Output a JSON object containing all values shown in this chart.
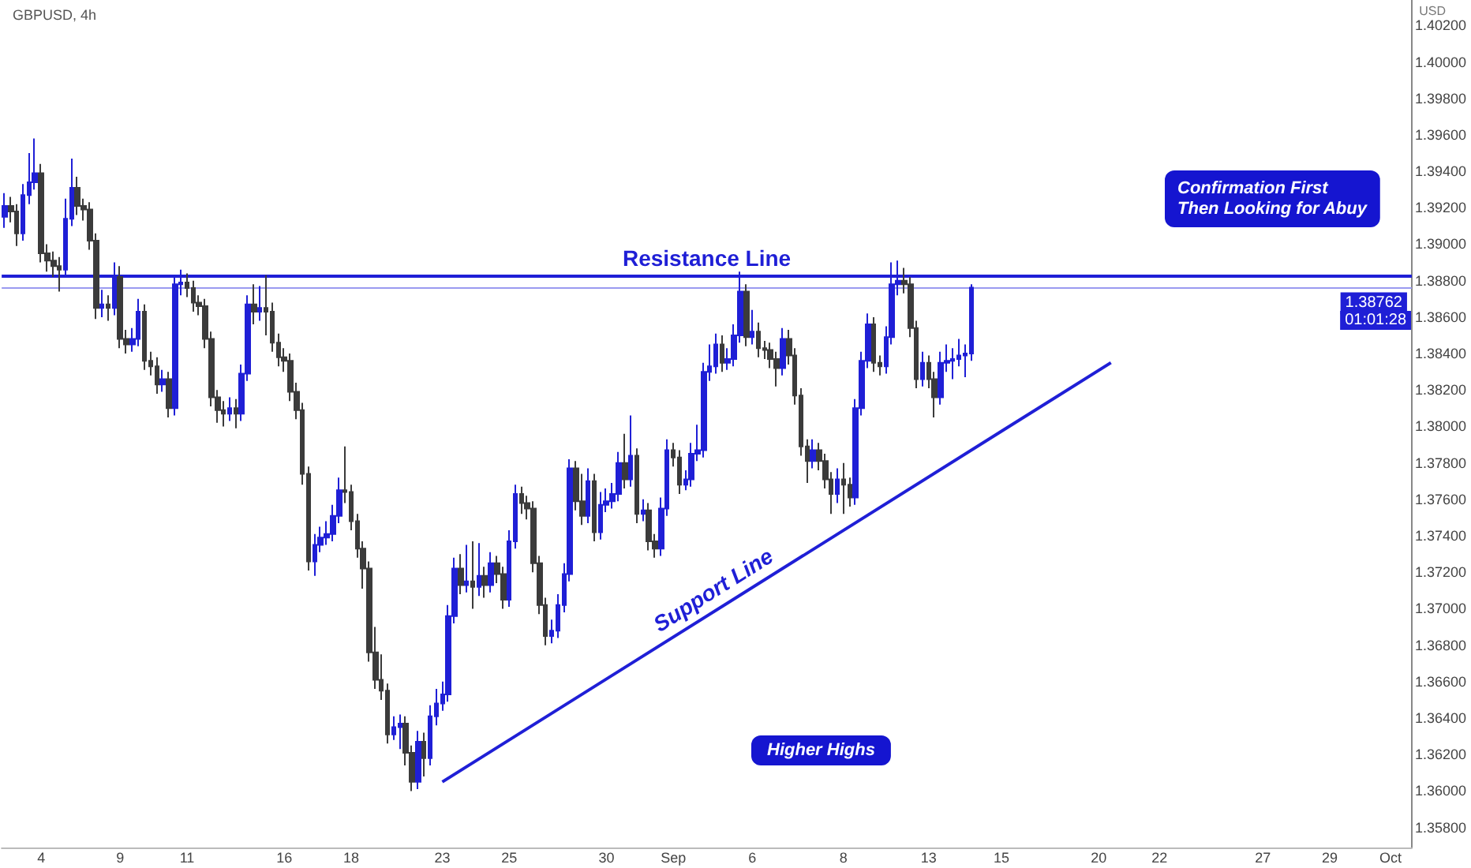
{
  "chart_data": {
    "type": "candlestick",
    "title": "GBPUSD, 4h",
    "ylabel": "USD",
    "categories": [
      null,
      null,
      null,
      null,
      null,
      null,
      "4",
      null,
      null,
      null,
      null,
      null,
      null,
      null,
      null,
      null,
      null,
      null,
      null,
      "9",
      null,
      null,
      null,
      null,
      null,
      null,
      null,
      null,
      null,
      null,
      "11",
      null,
      null,
      null,
      null,
      null,
      null,
      null,
      null,
      null,
      null,
      null,
      null,
      null,
      null,
      null,
      "16",
      null,
      null,
      null,
      null,
      null,
      null,
      null,
      null,
      null,
      null,
      "18",
      null,
      null,
      null,
      null,
      null,
      null,
      null,
      null,
      null,
      null,
      null,
      null,
      null,
      null,
      "23",
      null,
      null,
      null,
      null,
      null,
      null,
      null,
      null,
      null,
      null,
      "25",
      null,
      null,
      null,
      null,
      null,
      null,
      null,
      null,
      null,
      null,
      null,
      null,
      null,
      null,
      null,
      "30",
      null,
      null,
      null,
      null,
      null,
      null,
      null,
      null,
      null,
      null,
      "Sep",
      null,
      null,
      null,
      null,
      null,
      null,
      null,
      null,
      null,
      null,
      null,
      null,
      "6",
      null,
      null,
      null,
      null,
      null,
      null,
      null,
      null,
      null,
      null,
      null,
      null,
      null,
      null,
      "8",
      null,
      null,
      null,
      null,
      null,
      null,
      null,
      null,
      null,
      null,
      null,
      null,
      null,
      "13",
      null,
      null,
      null,
      null,
      null,
      null,
      null,
      null,
      null,
      null,
      null,
      "15",
      null,
      null,
      null,
      null,
      null,
      null,
      null,
      null,
      null,
      null,
      null,
      null,
      null,
      null,
      null,
      "20",
      null,
      null,
      null,
      null,
      null,
      null,
      null,
      null,
      null,
      "22",
      null,
      null,
      null,
      null,
      null,
      null,
      null,
      null,
      null,
      null,
      null,
      null,
      null,
      null,
      null,
      null,
      "27",
      null,
      null,
      null,
      null,
      null,
      null,
      null,
      null,
      null,
      null,
      "29",
      null,
      null,
      null,
      null,
      null,
      null,
      null,
      null,
      null,
      "Oct",
      null,
      null,
      null
    ],
    "series": [
      {
        "ohlc": [
          [
            1.3915,
            1.3928,
            1.3909,
            1.3921
          ],
          [
            1.3921,
            1.3926,
            1.3912,
            1.3918
          ],
          [
            1.3918,
            1.3922,
            1.3899,
            1.3906
          ],
          [
            1.3906,
            1.3933,
            1.3902,
            1.3927
          ],
          [
            1.3927,
            1.395,
            1.3922,
            1.3934
          ],
          [
            1.3934,
            1.3958,
            1.393,
            1.3939
          ],
          [
            1.3939,
            1.3944,
            1.389,
            1.3895
          ],
          [
            1.3895,
            1.39,
            1.3885,
            1.3891
          ],
          [
            1.3891,
            1.3896,
            1.3882,
            1.3888
          ],
          [
            1.3888,
            1.3893,
            1.3874,
            1.3886
          ],
          [
            1.3886,
            1.3925,
            1.3882,
            1.3914
          ],
          [
            1.3914,
            1.3947,
            1.391,
            1.3931
          ],
          [
            1.3931,
            1.3937,
            1.3916,
            1.3921
          ],
          [
            1.3921,
            1.3925,
            1.3913,
            1.3919
          ],
          [
            1.3919,
            1.3923,
            1.3897,
            1.3902
          ],
          [
            1.3902,
            1.3906,
            1.3859,
            1.3865
          ],
          [
            1.3865,
            1.3875,
            1.386,
            1.3867
          ],
          [
            1.3867,
            1.3872,
            1.3858,
            1.3865
          ],
          [
            1.3865,
            1.389,
            1.3861,
            1.3882
          ],
          [
            1.3882,
            1.3888,
            1.3843,
            1.3848
          ],
          [
            1.3848,
            1.3853,
            1.384,
            1.3845
          ],
          [
            1.3845,
            1.3854,
            1.3841,
            1.3848
          ],
          [
            1.3848,
            1.387,
            1.3844,
            1.3863
          ],
          [
            1.3863,
            1.3867,
            1.3831,
            1.3836
          ],
          [
            1.3836,
            1.3841,
            1.3828,
            1.3833
          ],
          [
            1.3833,
            1.3838,
            1.3818,
            1.3823
          ],
          [
            1.3823,
            1.3831,
            1.3819,
            1.3826
          ],
          [
            1.3826,
            1.383,
            1.3805,
            1.381
          ],
          [
            1.381,
            1.3882,
            1.3806,
            1.3878
          ],
          [
            1.3878,
            1.3886,
            1.3872,
            1.3879
          ],
          [
            1.3879,
            1.3884,
            1.3871,
            1.3876
          ],
          [
            1.3876,
            1.388,
            1.3863,
            1.3868
          ],
          [
            1.3868,
            1.3872,
            1.3861,
            1.3866
          ],
          [
            1.3866,
            1.387,
            1.3843,
            1.3848
          ],
          [
            1.3848,
            1.3852,
            1.3811,
            1.3816
          ],
          [
            1.3816,
            1.382,
            1.3802,
            1.3809
          ],
          [
            1.3809,
            1.3814,
            1.38,
            1.3807
          ],
          [
            1.3807,
            1.3816,
            1.3803,
            1.381
          ],
          [
            1.381,
            1.3815,
            1.3799,
            1.3807
          ],
          [
            1.3807,
            1.3834,
            1.3803,
            1.3829
          ],
          [
            1.3829,
            1.3872,
            1.3825,
            1.3867
          ],
          [
            1.3867,
            1.3878,
            1.3856,
            1.3863
          ],
          [
            1.3863,
            1.3877,
            1.3858,
            1.3865
          ],
          [
            1.3865,
            1.3883,
            1.385,
            1.3863
          ],
          [
            1.3863,
            1.3868,
            1.3841,
            1.3846
          ],
          [
            1.3846,
            1.3851,
            1.3833,
            1.3838
          ],
          [
            1.3838,
            1.3843,
            1.383,
            1.3836
          ],
          [
            1.3836,
            1.384,
            1.3814,
            1.3819
          ],
          [
            1.3819,
            1.3824,
            1.3804,
            1.3809
          ],
          [
            1.3809,
            1.3813,
            1.3768,
            1.3774
          ],
          [
            1.3774,
            1.3778,
            1.3721,
            1.3726
          ],
          [
            1.3726,
            1.3741,
            1.3718,
            1.3735
          ],
          [
            1.3735,
            1.3745,
            1.3731,
            1.3739
          ],
          [
            1.3739,
            1.3748,
            1.3735,
            1.3741
          ],
          [
            1.3741,
            1.3757,
            1.3737,
            1.3751
          ],
          [
            1.3751,
            1.3772,
            1.3747,
            1.3765
          ],
          [
            1.3765,
            1.3789,
            1.3758,
            1.3764
          ],
          [
            1.3764,
            1.3768,
            1.3743,
            1.3748
          ],
          [
            1.3748,
            1.3752,
            1.3728,
            1.3733
          ],
          [
            1.3733,
            1.3737,
            1.3711,
            1.3722
          ],
          [
            1.3722,
            1.3726,
            1.3671,
            1.3676
          ],
          [
            1.3676,
            1.369,
            1.3656,
            1.3661
          ],
          [
            1.3661,
            1.3675,
            1.365,
            1.3655
          ],
          [
            1.3655,
            1.3659,
            1.3626,
            1.3631
          ],
          [
            1.3631,
            1.3641,
            1.3628,
            1.3635
          ],
          [
            1.3635,
            1.3642,
            1.3623,
            1.3637
          ],
          [
            1.3637,
            1.3641,
            1.3614,
            1.3621
          ],
          [
            1.3621,
            1.3625,
            1.36,
            1.3605
          ],
          [
            1.3605,
            1.3633,
            1.3601,
            1.3627
          ],
          [
            1.3627,
            1.3632,
            1.3608,
            1.3618
          ],
          [
            1.3618,
            1.3647,
            1.3614,
            1.3641
          ],
          [
            1.3641,
            1.3656,
            1.3636,
            1.3648
          ],
          [
            1.3648,
            1.366,
            1.3644,
            1.3653
          ],
          [
            1.3653,
            1.3702,
            1.3649,
            1.3696
          ],
          [
            1.3696,
            1.3728,
            1.3692,
            1.3722
          ],
          [
            1.3722,
            1.373,
            1.3708,
            1.3713
          ],
          [
            1.3713,
            1.3735,
            1.3709,
            1.3715
          ],
          [
            1.3715,
            1.3737,
            1.37,
            1.3712
          ],
          [
            1.3712,
            1.3736,
            1.3707,
            1.3718
          ],
          [
            1.3718,
            1.3723,
            1.3706,
            1.3713
          ],
          [
            1.3713,
            1.3731,
            1.3709,
            1.3725
          ],
          [
            1.3725,
            1.3729,
            1.3714,
            1.3719
          ],
          [
            1.3719,
            1.3723,
            1.37,
            1.3705
          ],
          [
            1.3705,
            1.3743,
            1.3701,
            1.3737
          ],
          [
            1.3737,
            1.3768,
            1.3733,
            1.3763
          ],
          [
            1.3763,
            1.3767,
            1.3752,
            1.3758
          ],
          [
            1.3758,
            1.3762,
            1.3749,
            1.3755
          ],
          [
            1.3755,
            1.3759,
            1.372,
            1.3725
          ],
          [
            1.3725,
            1.3729,
            1.3697,
            1.3702
          ],
          [
            1.3702,
            1.3706,
            1.368,
            1.3685
          ],
          [
            1.3685,
            1.3694,
            1.3681,
            1.3688
          ],
          [
            1.3688,
            1.3708,
            1.3684,
            1.3702
          ],
          [
            1.3702,
            1.3725,
            1.3698,
            1.3719
          ],
          [
            1.3719,
            1.3782,
            1.3715,
            1.3777
          ],
          [
            1.3777,
            1.3781,
            1.3754,
            1.3759
          ],
          [
            1.3759,
            1.3774,
            1.3746,
            1.3751
          ],
          [
            1.3751,
            1.3777,
            1.3747,
            1.377
          ],
          [
            1.377,
            1.3774,
            1.3737,
            1.3742
          ],
          [
            1.3742,
            1.3764,
            1.3738,
            1.3757
          ],
          [
            1.3757,
            1.3766,
            1.3753,
            1.3759
          ],
          [
            1.3759,
            1.3769,
            1.3755,
            1.3763
          ],
          [
            1.3763,
            1.3786,
            1.3759,
            1.378
          ],
          [
            1.378,
            1.3796,
            1.3766,
            1.3771
          ],
          [
            1.3771,
            1.3806,
            1.3767,
            1.3784
          ],
          [
            1.3784,
            1.3788,
            1.3747,
            1.3752
          ],
          [
            1.3752,
            1.376,
            1.3748,
            1.3754
          ],
          [
            1.3754,
            1.3758,
            1.3732,
            1.3737
          ],
          [
            1.3737,
            1.3741,
            1.3728,
            1.3733
          ],
          [
            1.3733,
            1.3761,
            1.3729,
            1.3755
          ],
          [
            1.3755,
            1.3793,
            1.3751,
            1.3787
          ],
          [
            1.3787,
            1.3791,
            1.3778,
            1.3783
          ],
          [
            1.3783,
            1.3787,
            1.3763,
            1.3768
          ],
          [
            1.3768,
            1.3776,
            1.3765,
            1.3771
          ],
          [
            1.3771,
            1.3791,
            1.3767,
            1.3785
          ],
          [
            1.3785,
            1.3801,
            1.3781,
            1.3787
          ],
          [
            1.3787,
            1.3835,
            1.3783,
            1.383
          ],
          [
            1.383,
            1.3845,
            1.3825,
            1.3833
          ],
          [
            1.3833,
            1.3851,
            1.3829,
            1.3845
          ],
          [
            1.3845,
            1.385,
            1.383,
            1.3835
          ],
          [
            1.3835,
            1.3843,
            1.3831,
            1.3837
          ],
          [
            1.3837,
            1.3856,
            1.3833,
            1.385
          ],
          [
            1.385,
            1.3885,
            1.3846,
            1.3874
          ],
          [
            1.3874,
            1.3878,
            1.3844,
            1.3849
          ],
          [
            1.3849,
            1.3864,
            1.3845,
            1.3852
          ],
          [
            1.3852,
            1.3857,
            1.3838,
            1.3843
          ],
          [
            1.3843,
            1.3847,
            1.3837,
            1.3842
          ],
          [
            1.3842,
            1.3846,
            1.3832,
            1.3837
          ],
          [
            1.3837,
            1.3841,
            1.3822,
            1.3832
          ],
          [
            1.3832,
            1.3854,
            1.3828,
            1.3848
          ],
          [
            1.3848,
            1.3853,
            1.3834,
            1.3839
          ],
          [
            1.3839,
            1.3843,
            1.3812,
            1.3817
          ],
          [
            1.3817,
            1.3821,
            1.3784,
            1.3789
          ],
          [
            1.3789,
            1.3793,
            1.3769,
            1.3781
          ],
          [
            1.3781,
            1.3793,
            1.3777,
            1.3787
          ],
          [
            1.3787,
            1.3791,
            1.3776,
            1.3781
          ],
          [
            1.3781,
            1.3785,
            1.3766,
            1.3771
          ],
          [
            1.3771,
            1.3775,
            1.3752,
            1.3763
          ],
          [
            1.3763,
            1.3777,
            1.3758,
            1.3771
          ],
          [
            1.3771,
            1.378,
            1.3752,
            1.3768
          ],
          [
            1.3768,
            1.3772,
            1.3756,
            1.3761
          ],
          [
            1.3761,
            1.3815,
            1.3757,
            1.381
          ],
          [
            1.381,
            1.3841,
            1.3806,
            1.3836
          ],
          [
            1.3836,
            1.3862,
            1.3832,
            1.3856
          ],
          [
            1.3856,
            1.386,
            1.383,
            1.3835
          ],
          [
            1.3835,
            1.3839,
            1.3828,
            1.3833
          ],
          [
            1.3833,
            1.3855,
            1.3829,
            1.3849
          ],
          [
            1.3849,
            1.389,
            1.3845,
            1.3878
          ],
          [
            1.3878,
            1.3891,
            1.3872,
            1.388
          ],
          [
            1.388,
            1.3887,
            1.3873,
            1.3878
          ],
          [
            1.3878,
            1.3882,
            1.3849,
            1.3854
          ],
          [
            1.3854,
            1.3858,
            1.3821,
            1.3826
          ],
          [
            1.3826,
            1.3841,
            1.3822,
            1.3835
          ],
          [
            1.3835,
            1.3839,
            1.3821,
            1.3826
          ],
          [
            1.3826,
            1.383,
            1.3805,
            1.3816
          ],
          [
            1.3816,
            1.3841,
            1.3812,
            1.3835
          ],
          [
            1.3835,
            1.3845,
            1.383,
            1.3836
          ],
          [
            1.3836,
            1.3843,
            1.3826,
            1.3837
          ],
          [
            1.3837,
            1.3848,
            1.3833,
            1.3839
          ],
          [
            1.3839,
            1.3845,
            1.3827,
            1.384
          ],
          [
            1.384,
            1.3878,
            1.3836,
            1.38762
          ],
          null,
          null,
          null,
          null,
          null,
          null,
          null,
          null,
          null,
          null,
          null,
          null,
          null,
          null,
          null,
          null,
          null,
          null,
          null,
          null,
          null,
          null,
          null,
          null,
          null,
          null,
          null,
          null,
          null,
          null,
          null,
          null,
          null,
          null,
          null,
          null,
          null,
          null,
          null,
          null,
          null,
          null,
          null,
          null,
          null,
          null,
          null,
          null,
          null,
          null,
          null,
          null,
          null,
          null,
          null,
          null,
          null,
          null,
          null,
          null,
          null,
          null,
          null,
          null,
          null,
          null,
          null,
          null,
          null,
          null,
          null,
          null
        ],
        "colors": [
          "#1f1fd6",
          "#3b3b3b",
          "#3b3b3b",
          "#1f1fd6",
          "#1f1fd6",
          "#1f1fd6",
          "#3b3b3b",
          "#3b3b3b",
          "#3b3b3b",
          "#3b3b3b",
          "#1f1fd6",
          "#1f1fd6",
          "#3b3b3b",
          "#3b3b3b",
          "#3b3b3b",
          "#3b3b3b",
          "#1f1fd6",
          "#3b3b3b",
          "#1f1fd6",
          "#3b3b3b",
          "#3b3b3b",
          "#1f1fd6",
          "#1f1fd6",
          "#3b3b3b",
          "#3b3b3b",
          "#3b3b3b",
          "#1f1fd6",
          "#3b3b3b",
          "#1f1fd6",
          "#1f1fd6",
          "#3b3b3b",
          "#3b3b3b",
          "#3b3b3b",
          "#3b3b3b",
          "#3b3b3b",
          "#3b3b3b",
          "#3b3b3b",
          "#1f1fd6",
          "#3b3b3b",
          "#1f1fd6",
          "#1f1fd6",
          "#3b3b3b",
          "#1f1fd6",
          "#3b3b3b",
          "#3b3b3b",
          "#3b3b3b",
          "#3b3b3b",
          "#3b3b3b",
          "#3b3b3b",
          "#3b3b3b",
          "#3b3b3b",
          "#1f1fd6",
          "#1f1fd6",
          "#1f1fd6",
          "#1f1fd6",
          "#1f1fd6",
          "#3b3b3b",
          "#3b3b3b",
          "#3b3b3b",
          "#3b3b3b",
          "#3b3b3b",
          "#3b3b3b",
          "#3b3b3b",
          "#3b3b3b",
          "#1f1fd6",
          "#1f1fd6",
          "#3b3b3b",
          "#3b3b3b",
          "#1f1fd6",
          "#3b3b3b",
          "#1f1fd6",
          "#1f1fd6",
          "#1f1fd6",
          "#1f1fd6",
          "#1f1fd6",
          "#3b3b3b",
          "#1f1fd6",
          "#3b3b3b",
          "#1f1fd6",
          "#3b3b3b",
          "#1f1fd6",
          "#3b3b3b",
          "#3b3b3b",
          "#1f1fd6",
          "#1f1fd6",
          "#3b3b3b",
          "#3b3b3b",
          "#3b3b3b",
          "#3b3b3b",
          "#3b3b3b",
          "#1f1fd6",
          "#1f1fd6",
          "#1f1fd6",
          "#1f1fd6",
          "#3b3b3b",
          "#3b3b3b",
          "#1f1fd6",
          "#3b3b3b",
          "#1f1fd6",
          "#1f1fd6",
          "#1f1fd6",
          "#1f1fd6",
          "#3b3b3b",
          "#1f1fd6",
          "#3b3b3b",
          "#1f1fd6",
          "#3b3b3b",
          "#3b3b3b",
          "#1f1fd6",
          "#1f1fd6",
          "#3b3b3b",
          "#3b3b3b",
          "#1f1fd6",
          "#1f1fd6",
          "#1f1fd6",
          "#1f1fd6",
          "#1f1fd6",
          "#1f1fd6",
          "#3b3b3b",
          "#1f1fd6",
          "#1f1fd6",
          "#1f1fd6",
          "#3b3b3b",
          "#1f1fd6",
          "#3b3b3b",
          "#3b3b3b",
          "#3b3b3b",
          "#3b3b3b",
          "#1f1fd6",
          "#3b3b3b",
          "#3b3b3b",
          "#3b3b3b",
          "#3b3b3b",
          "#1f1fd6",
          "#3b3b3b",
          "#3b3b3b",
          "#3b3b3b",
          "#1f1fd6",
          "#3b3b3b",
          "#3b3b3b",
          "#1f1fd6",
          "#1f1fd6",
          "#1f1fd6",
          "#3b3b3b",
          "#3b3b3b",
          "#1f1fd6",
          "#1f1fd6",
          "#1f1fd6",
          "#3b3b3b",
          "#3b3b3b",
          "#3b3b3b",
          "#1f1fd6",
          "#3b3b3b",
          "#3b3b3b",
          "#1f1fd6",
          "#1f1fd6",
          "#1f1fd6",
          "#1f1fd6",
          "#1f1fd6",
          "#1f1fd6",
          null,
          null,
          null,
          null,
          null,
          null,
          null,
          null,
          null,
          null,
          null,
          null,
          null,
          null,
          null,
          null,
          null,
          null,
          null,
          null,
          null,
          null,
          null,
          null,
          null,
          null,
          null,
          null,
          null,
          null,
          null,
          null,
          null,
          null,
          null,
          null,
          null,
          null,
          null,
          null,
          null,
          null,
          null,
          null,
          null,
          null,
          null,
          null,
          null,
          null,
          null,
          null,
          null,
          null,
          null,
          null,
          null,
          null,
          null,
          null,
          null,
          null,
          null,
          null,
          null,
          null,
          null,
          null,
          null,
          null,
          null,
          null
        ]
      },
      {
        "type": "line",
        "name": "Support Line",
        "color": "#1f1fd6",
        "values": [
          null,
          null,
          null,
          null,
          null,
          null,
          null,
          null,
          null,
          null,
          null,
          null,
          null,
          null,
          null,
          null,
          null,
          null,
          null,
          null,
          null,
          null,
          null,
          null,
          null,
          null,
          null,
          null,
          null,
          null,
          null,
          null,
          null,
          null,
          null,
          null,
          null,
          null,
          null,
          null,
          null,
          null,
          null,
          null,
          null,
          null,
          null,
          null,
          null,
          null,
          null,
          null,
          null,
          null,
          null,
          null,
          null,
          null,
          null,
          null,
          null,
          null,
          null,
          null,
          null,
          null,
          null,
          null,
          null,
          null,
          null,
          null,
          1.3605,
          null,
          null,
          null,
          null,
          null,
          null,
          null,
          null,
          null,
          null,
          null,
          null,
          null,
          null,
          null,
          null,
          null,
          null,
          null,
          null,
          null,
          null,
          null,
          null,
          null,
          null,
          null,
          null,
          null,
          null,
          null,
          null,
          null,
          null,
          null,
          null,
          null,
          null,
          null,
          null,
          null,
          null,
          null,
          null,
          null,
          null,
          null,
          null,
          null,
          null,
          null,
          null,
          null,
          null,
          null,
          null,
          null,
          null,
          null,
          null,
          null,
          null,
          null,
          null,
          null,
          null,
          null,
          null,
          null,
          null,
          null,
          null,
          null,
          null,
          null,
          null,
          null,
          null,
          null,
          null,
          null,
          null,
          null,
          null,
          null,
          null,
          null,
          null,
          null,
          null,
          null,
          null,
          null,
          null,
          null,
          null,
          null,
          null,
          null,
          null,
          null,
          null,
          null,
          null,
          null,
          null,
          null,
          null,
          null,
          1.3835,
          null,
          null,
          null,
          null,
          null,
          null,
          null,
          null,
          null,
          null,
          null,
          null,
          null,
          null,
          null,
          null,
          null,
          null,
          null,
          null,
          null,
          null,
          null,
          null,
          null,
          null,
          null,
          null,
          null,
          null,
          null,
          null,
          null,
          null,
          null,
          null,
          null,
          null,
          null,
          null,
          null,
          null,
          null,
          null,
          null,
          null,
          null,
          null,
          null
        ]
      }
    ],
    "ylim": [
      1.3569,
      1.4034
    ],
    "yticks": [
      {
        "value": 1.358,
        "label": "1.35800"
      },
      {
        "value": 1.36,
        "label": "1.36000"
      },
      {
        "value": 1.362,
        "label": "1.36200"
      },
      {
        "value": 1.364,
        "label": "1.36400"
      },
      {
        "value": 1.366,
        "label": "1.36600"
      },
      {
        "value": 1.368,
        "label": "1.36800"
      },
      {
        "value": 1.37,
        "label": "1.37000"
      },
      {
        "value": 1.372,
        "label": "1.37200"
      },
      {
        "value": 1.374,
        "label": "1.37400"
      },
      {
        "value": 1.376,
        "label": "1.37600"
      },
      {
        "value": 1.378,
        "label": "1.37800"
      },
      {
        "value": 1.38,
        "label": "1.38000"
      },
      {
        "value": 1.382,
        "label": "1.38200"
      },
      {
        "value": 1.384,
        "label": "1.38400"
      },
      {
        "value": 1.386,
        "label": "1.38600"
      },
      {
        "value": 1.388,
        "label": "1.38800"
      },
      {
        "value": 1.39,
        "label": "1.39000"
      },
      {
        "value": 1.392,
        "label": "1.39200"
      },
      {
        "value": 1.394,
        "label": "1.39400"
      },
      {
        "value": 1.396,
        "label": "1.39600"
      },
      {
        "value": 1.398,
        "label": "1.39800"
      },
      {
        "value": 1.4,
        "label": "1.40000"
      },
      {
        "value": 1.402,
        "label": "1.40200"
      }
    ],
    "ref_lines": [
      {
        "axis": "y",
        "value": 1.3883,
        "label": "Resistance Line",
        "color": "#1f1fd6"
      },
      {
        "axis": "y",
        "value": 1.38762,
        "label": "1.38762",
        "color": "#9a9af0"
      }
    ],
    "annotations": [
      "01:01:28",
      "Confirmation First\nThen Looking for Abuy",
      "Higher Highs"
    ],
    "legend": false
  }
}
